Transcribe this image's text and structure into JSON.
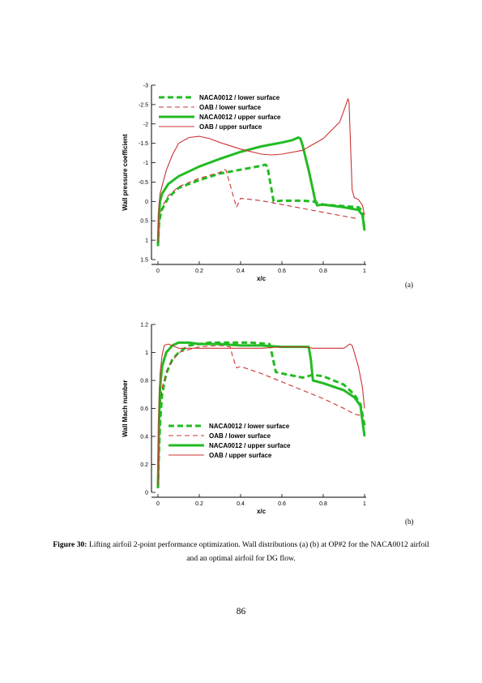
{
  "chart_data": [
    {
      "type": "line",
      "panel": "(a)",
      "xlabel": "x/c",
      "ylabel": "Wall pressure coefficient",
      "xlim": [
        0,
        1
      ],
      "ylim": [
        -3,
        1.5
      ],
      "y_reversed": true,
      "xticks": [
        "0",
        "0.2",
        "0.4",
        "0.6",
        "0.8",
        "1"
      ],
      "yticks": [
        "-3",
        "-2.5",
        "-2",
        "-1.5",
        "-1",
        "-0.5",
        "0",
        "0.5",
        "1",
        "1.5"
      ],
      "grid": false,
      "legend_position": "top-left",
      "series": [
        {
          "name": "NACA0012 / lower surface",
          "color": "#22bb22",
          "style": "dashed-thick",
          "points": [
            [
              0,
              1.15
            ],
            [
              0.005,
              0.6
            ],
            [
              0.01,
              0.4
            ],
            [
              0.02,
              0.2
            ],
            [
              0.05,
              -0.1
            ],
            [
              0.1,
              -0.35
            ],
            [
              0.2,
              -0.55
            ],
            [
              0.3,
              -0.72
            ],
            [
              0.4,
              -0.82
            ],
            [
              0.5,
              -0.92
            ],
            [
              0.52,
              -0.95
            ],
            [
              0.53,
              -0.9
            ],
            [
              0.56,
              0.0
            ],
            [
              0.6,
              -0.02
            ],
            [
              0.7,
              -0.02
            ],
            [
              0.75,
              0.0
            ],
            [
              0.78,
              0.05
            ],
            [
              0.8,
              0.08
            ],
            [
              0.9,
              0.12
            ],
            [
              0.97,
              0.15
            ],
            [
              0.99,
              0.25
            ],
            [
              1.0,
              0.75
            ]
          ]
        },
        {
          "name": "OAB / lower surface",
          "color": "#cc3333",
          "style": "dashed-thin",
          "points": [
            [
              0,
              0.9
            ],
            [
              0.005,
              0.55
            ],
            [
              0.01,
              0.35
            ],
            [
              0.02,
              0.15
            ],
            [
              0.05,
              -0.15
            ],
            [
              0.1,
              -0.38
            ],
            [
              0.2,
              -0.6
            ],
            [
              0.3,
              -0.75
            ],
            [
              0.32,
              -0.83
            ],
            [
              0.33,
              -0.8
            ],
            [
              0.38,
              0.15
            ],
            [
              0.4,
              -0.08
            ],
            [
              0.5,
              -0.02
            ],
            [
              0.6,
              0.08
            ],
            [
              0.7,
              0.18
            ],
            [
              0.8,
              0.28
            ],
            [
              0.9,
              0.38
            ],
            [
              0.97,
              0.45
            ]
          ]
        },
        {
          "name": "NACA0012 / upper surface",
          "color": "#22bb22",
          "style": "solid-thick",
          "points": [
            [
              0,
              1.15
            ],
            [
              0.005,
              0.3
            ],
            [
              0.01,
              0.0
            ],
            [
              0.02,
              -0.2
            ],
            [
              0.05,
              -0.45
            ],
            [
              0.1,
              -0.65
            ],
            [
              0.2,
              -0.9
            ],
            [
              0.3,
              -1.1
            ],
            [
              0.4,
              -1.28
            ],
            [
              0.5,
              -1.42
            ],
            [
              0.6,
              -1.52
            ],
            [
              0.65,
              -1.58
            ],
            [
              0.68,
              -1.65
            ],
            [
              0.69,
              -1.62
            ],
            [
              0.7,
              -1.45
            ],
            [
              0.73,
              -0.8
            ],
            [
              0.75,
              -0.3
            ],
            [
              0.76,
              -0.05
            ],
            [
              0.77,
              0.1
            ],
            [
              0.8,
              0.08
            ],
            [
              0.9,
              0.15
            ],
            [
              0.97,
              0.22
            ],
            [
              0.99,
              0.35
            ],
            [
              1.0,
              0.75
            ]
          ]
        },
        {
          "name": "OAB / upper surface",
          "color": "#cc3333",
          "style": "solid-thin",
          "points": [
            [
              0,
              1.05
            ],
            [
              0.005,
              0.1
            ],
            [
              0.01,
              -0.2
            ],
            [
              0.02,
              -0.4
            ],
            [
              0.04,
              -0.8
            ],
            [
              0.07,
              -1.2
            ],
            [
              0.1,
              -1.5
            ],
            [
              0.15,
              -1.65
            ],
            [
              0.2,
              -1.68
            ],
            [
              0.25,
              -1.62
            ],
            [
              0.3,
              -1.52
            ],
            [
              0.4,
              -1.35
            ],
            [
              0.5,
              -1.22
            ],
            [
              0.55,
              -1.2
            ],
            [
              0.6,
              -1.22
            ],
            [
              0.7,
              -1.32
            ],
            [
              0.8,
              -1.62
            ],
            [
              0.88,
              -2.05
            ],
            [
              0.91,
              -2.5
            ],
            [
              0.92,
              -2.65
            ],
            [
              0.925,
              -2.55
            ],
            [
              0.93,
              -1.8
            ],
            [
              0.94,
              -0.3
            ],
            [
              0.95,
              -0.1
            ],
            [
              0.97,
              -0.05
            ],
            [
              0.99,
              0.1
            ],
            [
              1.0,
              0.35
            ]
          ]
        }
      ]
    },
    {
      "type": "line",
      "panel": "(b)",
      "xlabel": "x/c",
      "ylabel": "Wall Mach number",
      "xlim": [
        0,
        1
      ],
      "ylim": [
        0,
        1.2
      ],
      "xticks": [
        "0",
        "0.2",
        "0.4",
        "0.6",
        "0.8",
        "1"
      ],
      "yticks": [
        "0",
        "0.2",
        "0.4",
        "0.6",
        "0.8",
        "1",
        "1.2"
      ],
      "grid": false,
      "legend_position": "bottom-left",
      "series": [
        {
          "name": "NACA0012 / lower surface",
          "color": "#22bb22",
          "style": "dashed-thick",
          "points": [
            [
              0,
              0.03
            ],
            [
              0.005,
              0.3
            ],
            [
              0.01,
              0.5
            ],
            [
              0.02,
              0.7
            ],
            [
              0.04,
              0.85
            ],
            [
              0.07,
              0.95
            ],
            [
              0.1,
              1.0
            ],
            [
              0.15,
              1.05
            ],
            [
              0.25,
              1.07
            ],
            [
              0.35,
              1.07
            ],
            [
              0.45,
              1.07
            ],
            [
              0.54,
              1.06
            ],
            [
              0.55,
              1.0
            ],
            [
              0.57,
              0.86
            ],
            [
              0.6,
              0.85
            ],
            [
              0.7,
              0.82
            ],
            [
              0.75,
              0.84
            ],
            [
              0.8,
              0.83
            ],
            [
              0.9,
              0.77
            ],
            [
              0.95,
              0.7
            ],
            [
              0.98,
              0.63
            ],
            [
              1.0,
              0.48
            ]
          ]
        },
        {
          "name": "OAB / lower surface",
          "color": "#cc3333",
          "style": "dashed-thin",
          "points": [
            [
              0,
              0.05
            ],
            [
              0.005,
              0.4
            ],
            [
              0.01,
              0.6
            ],
            [
              0.02,
              0.75
            ],
            [
              0.05,
              0.9
            ],
            [
              0.1,
              1.0
            ],
            [
              0.2,
              1.04
            ],
            [
              0.3,
              1.05
            ],
            [
              0.35,
              1.04
            ],
            [
              0.36,
              0.98
            ],
            [
              0.38,
              0.89
            ],
            [
              0.4,
              0.9
            ],
            [
              0.5,
              0.85
            ],
            [
              0.6,
              0.79
            ],
            [
              0.7,
              0.73
            ],
            [
              0.8,
              0.67
            ],
            [
              0.9,
              0.6
            ],
            [
              0.95,
              0.56
            ],
            [
              0.98,
              0.55
            ]
          ]
        },
        {
          "name": "NACA0012 / upper surface",
          "color": "#22bb22",
          "style": "solid-thick",
          "points": [
            [
              0,
              0.03
            ],
            [
              0.005,
              0.5
            ],
            [
              0.01,
              0.75
            ],
            [
              0.02,
              0.9
            ],
            [
              0.04,
              1.0
            ],
            [
              0.07,
              1.05
            ],
            [
              0.1,
              1.07
            ],
            [
              0.15,
              1.07
            ],
            [
              0.2,
              1.06
            ],
            [
              0.3,
              1.06
            ],
            [
              0.4,
              1.05
            ],
            [
              0.5,
              1.05
            ],
            [
              0.6,
              1.04
            ],
            [
              0.7,
              1.04
            ],
            [
              0.73,
              1.04
            ],
            [
              0.74,
              0.95
            ],
            [
              0.75,
              0.8
            ],
            [
              0.8,
              0.78
            ],
            [
              0.9,
              0.73
            ],
            [
              0.95,
              0.68
            ],
            [
              0.98,
              0.62
            ],
            [
              1.0,
              0.4
            ]
          ]
        },
        {
          "name": "OAB / upper surface",
          "color": "#cc3333",
          "style": "solid-thin",
          "points": [
            [
              0,
              0.05
            ],
            [
              0.005,
              0.6
            ],
            [
              0.01,
              0.85
            ],
            [
              0.02,
              0.98
            ],
            [
              0.03,
              1.05
            ],
            [
              0.05,
              1.06
            ],
            [
              0.1,
              1.03
            ],
            [
              0.2,
              1.03
            ],
            [
              0.3,
              1.03
            ],
            [
              0.4,
              1.03
            ],
            [
              0.5,
              1.03
            ],
            [
              0.6,
              1.04
            ],
            [
              0.7,
              1.04
            ],
            [
              0.75,
              1.03
            ],
            [
              0.85,
              1.03
            ],
            [
              0.9,
              1.03
            ],
            [
              0.93,
              1.06
            ],
            [
              0.94,
              1.05
            ],
            [
              0.95,
              1.0
            ],
            [
              0.97,
              0.9
            ],
            [
              0.99,
              0.75
            ],
            [
              1.0,
              0.6
            ]
          ]
        }
      ]
    }
  ],
  "panel_label_a": "(a)",
  "panel_label_b": "(b)",
  "caption": {
    "label": "Figure 30:",
    "text": " Lifting airfoil 2-point performance optimization. Wall distributions (a) (b) at OP#2 for the NACA0012 airfoil and an optimal airfoil for DG flow."
  },
  "page_number": "86"
}
